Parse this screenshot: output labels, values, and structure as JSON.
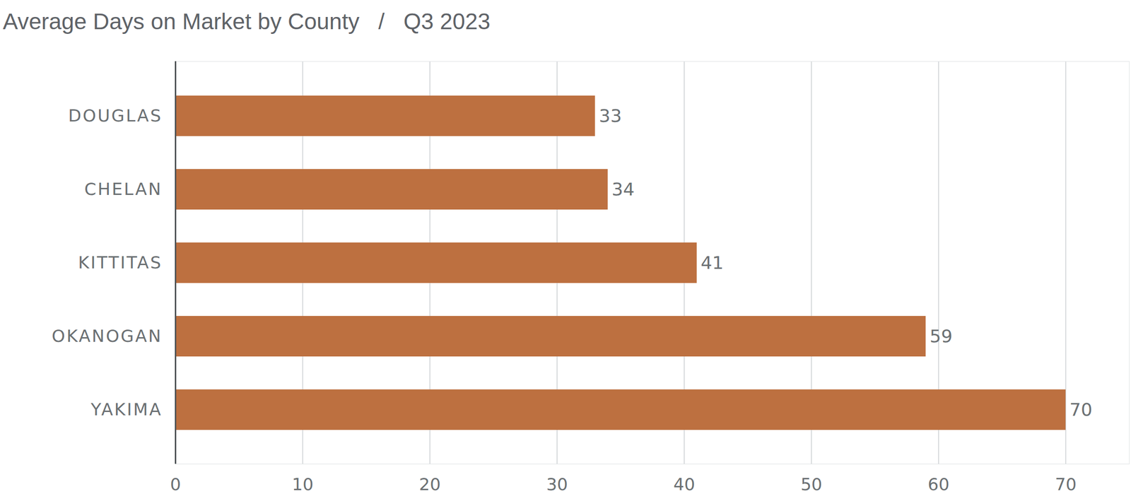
{
  "chart_data": {
    "type": "bar",
    "title": "Average Days on Market by County   /   Q3 2023",
    "orientation": "horizontal",
    "categories": [
      "DOUGLAS",
      "CHELAN",
      "KITTITAS",
      "OKANOGAN",
      "YAKIMA"
    ],
    "values": [
      33,
      34,
      41,
      59,
      70
    ],
    "color": "#bd7040",
    "xlim": [
      0,
      75
    ],
    "xticks": [
      0,
      10,
      20,
      30,
      40,
      50,
      60,
      70
    ],
    "grid": true,
    "data_labels": true
  }
}
